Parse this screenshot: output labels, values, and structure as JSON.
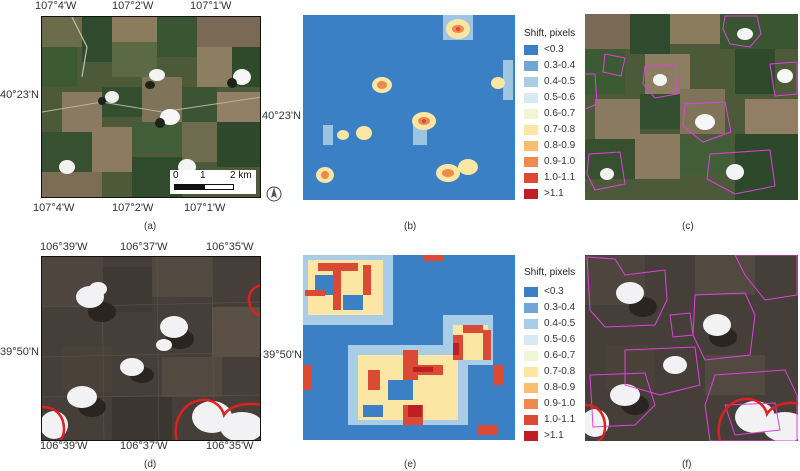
{
  "top": {
    "coords_top": [
      "107°4'W",
      "107°2'W",
      "107°1'W"
    ],
    "coords_bottom": [
      "107°4'W",
      "107°2'W",
      "107°1'W"
    ],
    "lat_left": "40°23'N",
    "lat_right": "40°23'N",
    "scalebar": {
      "zero": "0",
      "one": "1",
      "two": "2 km"
    },
    "north_label": "N"
  },
  "bottom": {
    "coords_top": [
      "106°39'W",
      "106°37'W",
      "106°35'W"
    ],
    "coords_bottom": [
      "106°39'W",
      "106°37'W",
      "106°35'W"
    ],
    "lat_left": "39°50'N",
    "lat_right": "39°50'N"
  },
  "legend": {
    "title": "Shift, pixels",
    "items": [
      {
        "label": "<0.3",
        "color": "#3b7fc4"
      },
      {
        "label": "0.3-0.4",
        "color": "#6fa6d6"
      },
      {
        "label": "0.4-0.5",
        "color": "#a9cde6"
      },
      {
        "label": "0.5-0.6",
        "color": "#d6eaf0"
      },
      {
        "label": "0.6-0.7",
        "color": "#eef6d4"
      },
      {
        "label": "0.7-0.8",
        "color": "#fbe6a4"
      },
      {
        "label": "0.8-0.9",
        "color": "#f8bd6e"
      },
      {
        "label": "0.9-1.0",
        "color": "#ee8a4d"
      },
      {
        "label": "1.0-1.1",
        "color": "#db4a34"
      },
      {
        "label": ">1.1",
        "color": "#bf1e24"
      }
    ]
  },
  "captions": [
    "(a)",
    "(b)",
    "(c)",
    "(d)",
    "(e)",
    "(f)"
  ]
}
